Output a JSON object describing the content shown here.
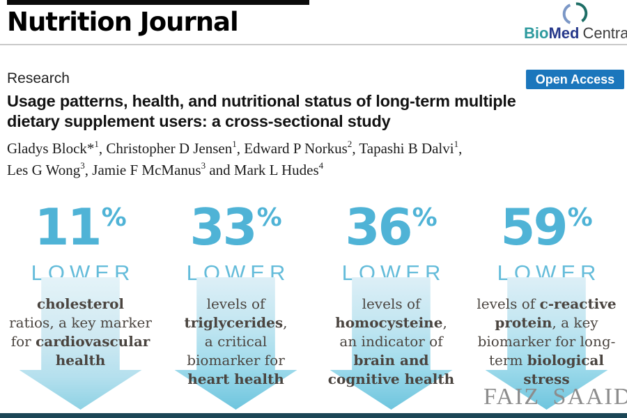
{
  "colors": {
    "accent_blue": "#4fb3d6",
    "open_access_bg": "#1b76bc",
    "logo_teal": "#2e9a9e",
    "logo_navy": "#27398b",
    "logo_arc_blue": "#7b97c6",
    "logo_arc_teal": "#1e6e66",
    "bottom_bar": "#1b4656",
    "body_text": "#4a443f"
  },
  "header": {
    "journal_title": "Nutrition Journal",
    "logo_bio": "Bio",
    "logo_med": "Med",
    "logo_central": "Central",
    "logo_icon": "biomed-central-broken-circle"
  },
  "article": {
    "section_label": "Research",
    "open_access_label": "Open Access",
    "title_line1": "Usage patterns, health, and nutritional status of long-term multiple",
    "title_line2": "dietary supplement users: a cross-sectional study",
    "authors_lines": [
      [
        {
          "t": "Gladys Block*"
        },
        {
          "t": "1",
          "sup": true
        },
        {
          "t": ", Christopher D Jensen"
        },
        {
          "t": "1",
          "sup": true
        },
        {
          "t": ", Edward P Norkus"
        },
        {
          "t": "2",
          "sup": true
        },
        {
          "t": ", Tapashi B Dalvi"
        },
        {
          "t": "1",
          "sup": true
        },
        {
          "t": ","
        }
      ],
      [
        {
          "t": "Les G Wong"
        },
        {
          "t": "3",
          "sup": true
        },
        {
          "t": ", Jamie F McManus"
        },
        {
          "t": "3",
          "sup": true
        },
        {
          "t": " and Mark L Hudes"
        },
        {
          "t": "4",
          "sup": true
        }
      ]
    ]
  },
  "infographic": {
    "arrow_icon": "down-arrow",
    "columns": [
      {
        "percent": "11",
        "percent_sign": "%",
        "lower_label": "LOWER",
        "tone": "light",
        "desc_lines": [
          [
            {
              "t": "cholesterol",
              "b": true
            }
          ],
          [
            {
              "t": "ratios, a key marker",
              "b": false
            }
          ],
          [
            {
              "t": "for ",
              "b": false
            },
            {
              "t": "cardiovascular",
              "b": true
            }
          ],
          [
            {
              "t": "health",
              "b": true
            }
          ]
        ]
      },
      {
        "percent": "33",
        "percent_sign": "%",
        "lower_label": "LOWER",
        "tone": "strong",
        "desc_lines": [
          [
            {
              "t": "levels of",
              "b": false
            }
          ],
          [
            {
              "t": "triglycerides",
              "b": true
            },
            {
              "t": ",",
              "b": false
            }
          ],
          [
            {
              "t": "a critical",
              "b": false
            }
          ],
          [
            {
              "t": "biomarker for",
              "b": false
            }
          ],
          [
            {
              "t": "heart health",
              "b": true
            }
          ]
        ]
      },
      {
        "percent": "36",
        "percent_sign": "%",
        "lower_label": "LOWER",
        "tone": "strong",
        "desc_lines": [
          [
            {
              "t": "levels of",
              "b": false
            }
          ],
          [
            {
              "t": "homocysteine",
              "b": true
            },
            {
              "t": ",",
              "b": false
            }
          ],
          [
            {
              "t": "an indicator of",
              "b": false
            }
          ],
          [
            {
              "t": "brain and",
              "b": true
            }
          ],
          [
            {
              "t": "cognitive health",
              "b": true
            }
          ]
        ]
      },
      {
        "percent": "59",
        "percent_sign": "%",
        "lower_label": "LOWER",
        "tone": "strong",
        "desc_lines": [
          [
            {
              "t": "levels of ",
              "b": false
            },
            {
              "t": "c-reactive",
              "b": true
            }
          ],
          [
            {
              "t": "protein",
              "b": true
            },
            {
              "t": ", a key",
              "b": false
            }
          ],
          [
            {
              "t": "biomarker for long-",
              "b": false
            }
          ],
          [
            {
              "t": "term ",
              "b": false
            },
            {
              "t": "biological",
              "b": true
            }
          ],
          [
            {
              "t": "stress",
              "b": true
            }
          ]
        ]
      }
    ]
  },
  "watermark": "FAIZ SAAID"
}
